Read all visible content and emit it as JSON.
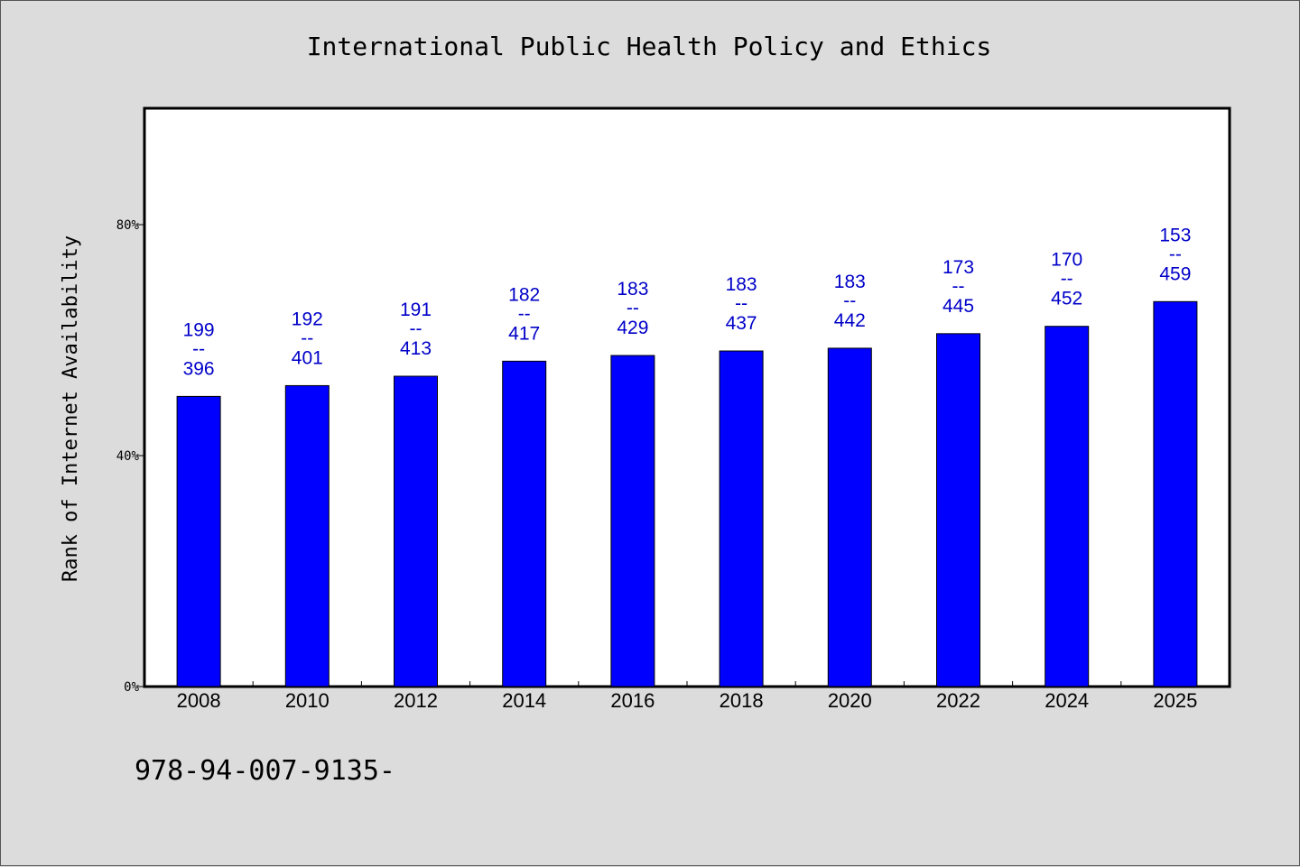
{
  "chart_data": {
    "type": "bar",
    "title": "International Public Health Policy and Ethics",
    "xlabel": "",
    "ylabel": "Rank of Internet Availability",
    "categories": [
      "2008",
      "2010",
      "2012",
      "2014",
      "2016",
      "2018",
      "2020",
      "2022",
      "2024",
      "2025"
    ],
    "values": [
      0.5025,
      0.5212,
      0.5375,
      0.5635,
      0.5734,
      0.5812,
      0.586,
      0.6112,
      0.6239,
      0.6667
    ],
    "data_labels": [
      {
        "top": "199",
        "mid": "--",
        "bottom": "396"
      },
      {
        "top": "192",
        "mid": "--",
        "bottom": "401"
      },
      {
        "top": "191",
        "mid": "--",
        "bottom": "413"
      },
      {
        "top": "182",
        "mid": "--",
        "bottom": "417"
      },
      {
        "top": "183",
        "mid": "--",
        "bottom": "429"
      },
      {
        "top": "183",
        "mid": "--",
        "bottom": "437"
      },
      {
        "top": "183",
        "mid": "--",
        "bottom": "442"
      },
      {
        "top": "173",
        "mid": "--",
        "bottom": "445"
      },
      {
        "top": "170",
        "mid": "--",
        "bottom": "452"
      },
      {
        "top": "153",
        "mid": "--",
        "bottom": "459"
      }
    ],
    "ylim": [
      0,
      1
    ],
    "yticks": [
      0,
      0.4,
      0.8
    ],
    "ytick_labels": [
      "0%",
      "40%",
      "80%"
    ],
    "grid": false,
    "bar_color": "#0000ff",
    "label_color": "#0000c8",
    "background": "#dcdcdc",
    "plot_background": "#ffffff"
  },
  "footer": {
    "isbn": "978-94-007-9135-"
  }
}
